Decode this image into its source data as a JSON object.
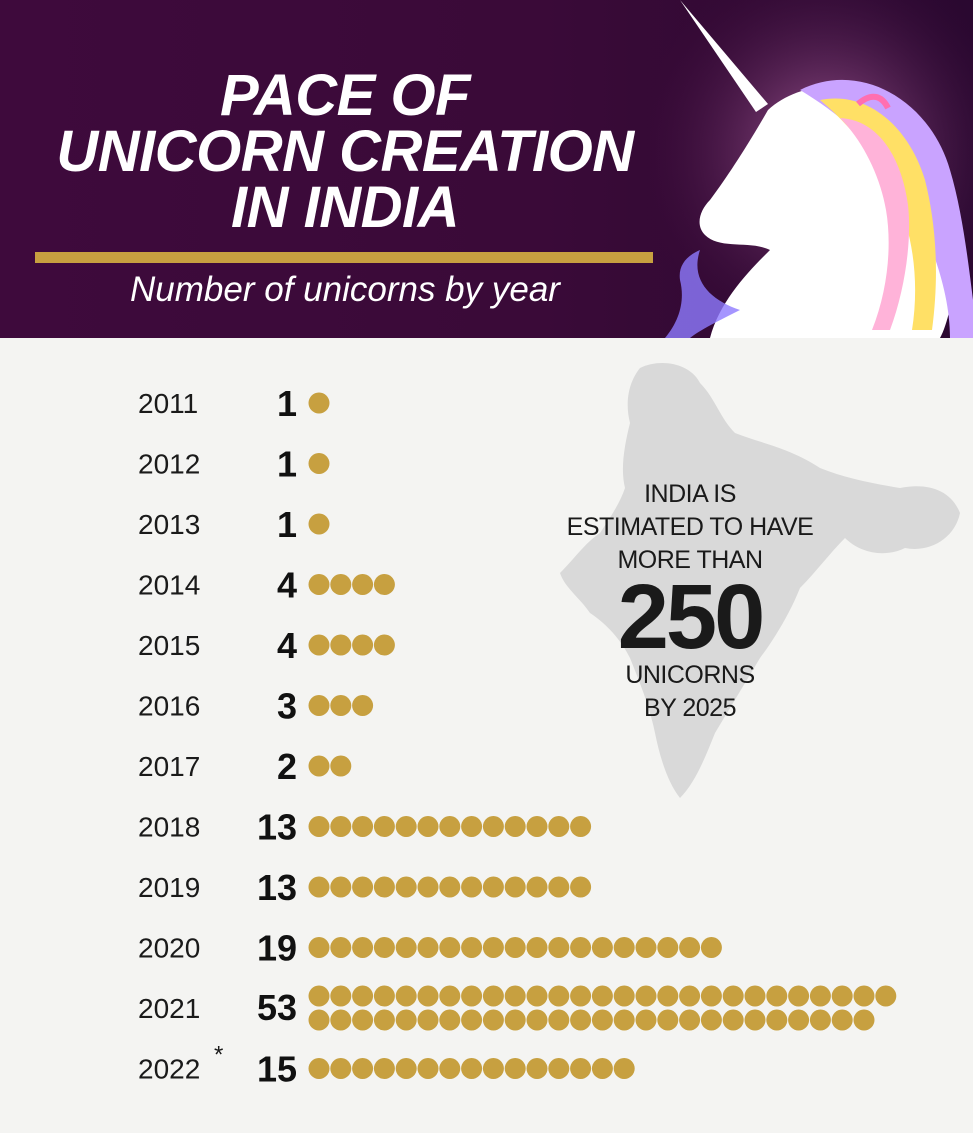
{
  "header": {
    "title_lines": [
      "PACE OF",
      "UNICORN CREATION",
      "IN INDIA"
    ],
    "subtitle": "Number of unicorns by year"
  },
  "callout": {
    "line1": "INDIA IS",
    "line2": "ESTIMATED TO HAVE",
    "line3": "MORE THAN",
    "big_number": "250",
    "line4": "UNICORNS",
    "line5": "BY 2025"
  },
  "colors": {
    "header_bg": "#3e0a3c",
    "accent_gold": "#c7a040",
    "map_gray": "#d9d9d9"
  },
  "chart_data": {
    "type": "bar",
    "mark": "dot-pictogram",
    "title": "PACE OF UNICORN CREATION IN INDIA",
    "subtitle": "Number of unicorns by year",
    "categories": [
      "2011",
      "2012",
      "2013",
      "2014",
      "2015",
      "2016",
      "2017",
      "2018",
      "2019",
      "2020",
      "2021",
      "2022"
    ],
    "category_notes": [
      "",
      "",
      "",
      "",
      "",
      "",
      "",
      "",
      "",
      "",
      "",
      "*"
    ],
    "values": [
      1,
      1,
      1,
      4,
      4,
      3,
      2,
      13,
      13,
      19,
      53,
      15
    ],
    "value_labels": [
      "1",
      "1",
      "1",
      "4",
      "4",
      "3",
      "2",
      "13",
      "13",
      "19",
      "53",
      "15"
    ],
    "orientation": "horizontal",
    "grid": false
  }
}
